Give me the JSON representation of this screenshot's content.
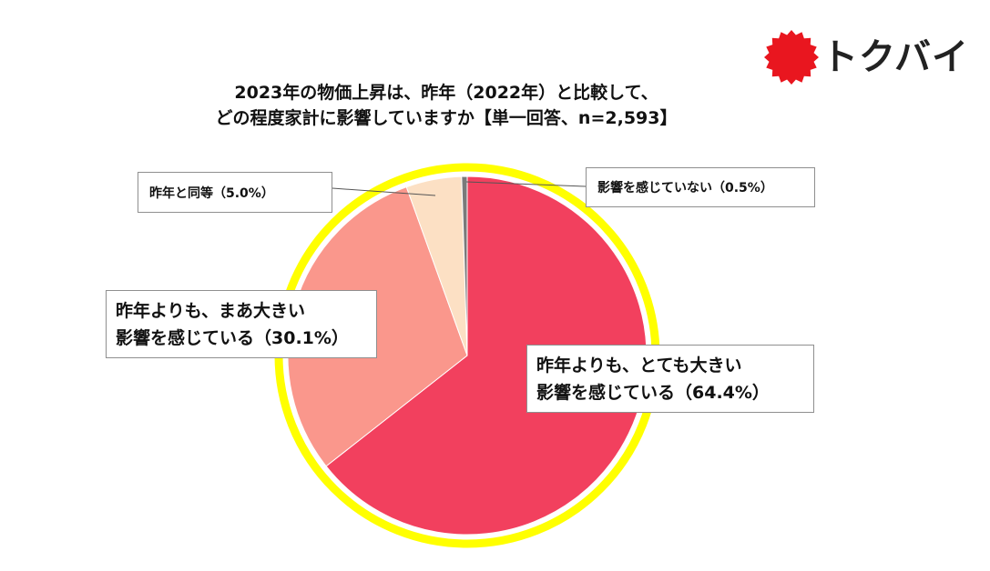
{
  "title": {
    "line1": "2023年の物価上昇は、昨年（2022年）と比較して、",
    "line2": "どの程度家計に影響していますか【単一回答、n=2,593】"
  },
  "logo": {
    "text": "トクバイ",
    "color": "#e9161f",
    "icon": "sun-seal-icon"
  },
  "chart_data": {
    "type": "pie",
    "title": "2023年の物価上昇は、昨年（2022年）と比較して、どの程度家計に影響していますか【単一回答、n=2,593】",
    "slices": [
      {
        "label": "昨年よりも、とても大きい影響を感じている（64.4%）",
        "value": 64.4,
        "color": "#f2405e"
      },
      {
        "label": "昨年よりも、まあ大きい影響を感じている（30.1%）",
        "value": 30.1,
        "color": "#fa978c"
      },
      {
        "label": "昨年と同等（5.0%）",
        "value": 5.0,
        "color": "#fce0c4"
      },
      {
        "label": "影響を感じていない（0.5%）",
        "value": 0.5,
        "color": "#7a7a7a"
      }
    ],
    "highlight_ring_color": "#ffff00",
    "start": "12 o'clock",
    "direction": "clockwise"
  },
  "labels": {
    "very_large": {
      "line1": "昨年よりも、とても大きい",
      "line2": "影響を感じている（64.4%）"
    },
    "somewhat_large": {
      "line1": "昨年よりも、まあ大きい",
      "line2": "影響を感じている（30.1%）"
    },
    "same": {
      "text": "昨年と同等（5.0%）"
    },
    "none": {
      "text": "影響を感じていない（0.5%）"
    }
  }
}
